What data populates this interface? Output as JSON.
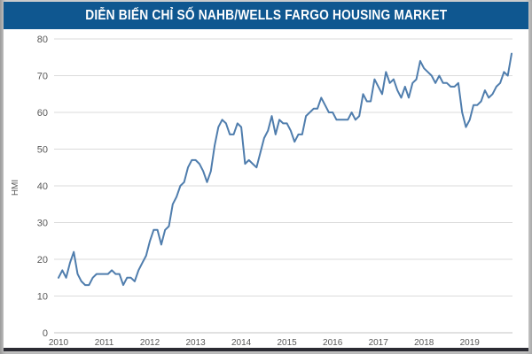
{
  "header": {
    "title": "DIỄN BIẾN CHỈ SỐ NAHB/WELLS FARGO HOUSING MARKET"
  },
  "chart_data": {
    "type": "line",
    "title": "DIỄN BIẾN CHỈ SỐ NAHB/WELLS FARGO HOUSING MARKET",
    "xlabel": "",
    "ylabel": "HMI",
    "ylim": [
      0,
      80
    ],
    "yticks": [
      0,
      10,
      20,
      30,
      40,
      50,
      60,
      70,
      80
    ],
    "x_tick_labels": [
      "2010",
      "2011",
      "2012",
      "2013",
      "2014",
      "2015",
      "2016",
      "2017",
      "2018",
      "2019"
    ],
    "x_start": "2010-01",
    "frequency": "monthly",
    "grid": "horizontal",
    "legend": "none",
    "series": [
      {
        "name": "HMI",
        "values": [
          15,
          17,
          15,
          19,
          22,
          16,
          14,
          13,
          13,
          15,
          16,
          16,
          16,
          16,
          17,
          16,
          16,
          13,
          15,
          15,
          14,
          17,
          19,
          21,
          25,
          28,
          28,
          24,
          28,
          29,
          35,
          37,
          40,
          41,
          45,
          47,
          47,
          46,
          44,
          41,
          44,
          51,
          56,
          58,
          57,
          54,
          54,
          57,
          56,
          46,
          47,
          46,
          45,
          49,
          53,
          55,
          59,
          54,
          58,
          57,
          57,
          55,
          52,
          54,
          54,
          59,
          60,
          61,
          61,
          64,
          62,
          60,
          60,
          58,
          58,
          58,
          58,
          60,
          58,
          59,
          65,
          63,
          63,
          69,
          67,
          65,
          71,
          68,
          69,
          66,
          64,
          67,
          64,
          68,
          69,
          74,
          72,
          71,
          70,
          68,
          70,
          68,
          68,
          67,
          67,
          68,
          60,
          56,
          58,
          62,
          62,
          63,
          66,
          64,
          65,
          67,
          68,
          71,
          70,
          76
        ]
      }
    ],
    "colors": {
      "line": "#4F7DAD",
      "gridline": "#DBDBDB",
      "axis_line": "#C3C3C3",
      "tick_text": "#595959",
      "header_bg": "#0F5790",
      "header_text": "#FFFFFF"
    }
  }
}
